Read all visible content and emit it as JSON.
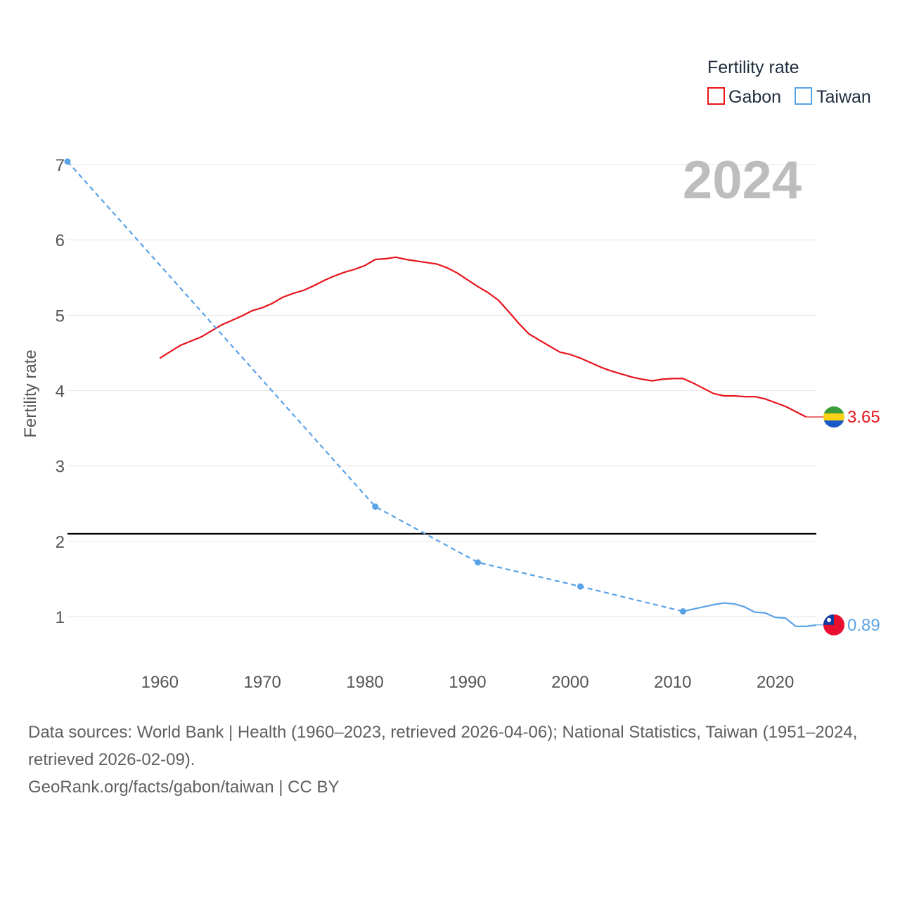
{
  "chart_data": {
    "type": "line",
    "title": "",
    "ylabel": "Fertility rate",
    "xlabel": "",
    "xlim": [
      1951,
      2024
    ],
    "ylim": [
      0,
      7.1
    ],
    "x_ticks": [
      1960,
      1970,
      1980,
      1990,
      2000,
      2010,
      2020
    ],
    "y_ticks": [
      1,
      2,
      3,
      4,
      5,
      6,
      7
    ],
    "current_year": "2024",
    "legend": {
      "title": "Fertility rate",
      "position": "top-right"
    },
    "reference_line": {
      "y": 2.1,
      "color": "#000000"
    },
    "series": [
      {
        "name": "Gabon",
        "color": "#e8141c",
        "end_label": "3.65",
        "end_value": 3.65,
        "points": [
          [
            1960,
            4.43
          ],
          [
            1962,
            4.6
          ],
          [
            1964,
            4.71
          ],
          [
            1966,
            4.87
          ],
          [
            1968,
            4.99
          ],
          [
            1969,
            5.06
          ],
          [
            1970,
            5.1
          ],
          [
            1971,
            5.16
          ],
          [
            1972,
            5.24
          ],
          [
            1973,
            5.29
          ],
          [
            1974,
            5.33
          ],
          [
            1975,
            5.39
          ],
          [
            1976,
            5.46
          ],
          [
            1977,
            5.52
          ],
          [
            1978,
            5.57
          ],
          [
            1979,
            5.61
          ],
          [
            1980,
            5.66
          ],
          [
            1981,
            5.74
          ],
          [
            1982,
            5.75
          ],
          [
            1983,
            5.77
          ],
          [
            1984,
            5.74
          ],
          [
            1985,
            5.72
          ],
          [
            1986,
            5.7
          ],
          [
            1987,
            5.68
          ],
          [
            1988,
            5.63
          ],
          [
            1989,
            5.56
          ],
          [
            1990,
            5.47
          ],
          [
            1991,
            5.38
          ],
          [
            1992,
            5.3
          ],
          [
            1993,
            5.2
          ],
          [
            1994,
            5.05
          ],
          [
            1995,
            4.89
          ],
          [
            1996,
            4.75
          ],
          [
            1997,
            4.67
          ],
          [
            1998,
            4.59
          ],
          [
            1999,
            4.51
          ],
          [
            2000,
            4.48
          ],
          [
            2001,
            4.43
          ],
          [
            2002,
            4.37
          ],
          [
            2003,
            4.31
          ],
          [
            2004,
            4.26
          ],
          [
            2005,
            4.22
          ],
          [
            2006,
            4.18
          ],
          [
            2007,
            4.15
          ],
          [
            2008,
            4.13
          ],
          [
            2009,
            4.15
          ],
          [
            2010,
            4.16
          ],
          [
            2011,
            4.16
          ],
          [
            2012,
            4.1
          ],
          [
            2013,
            4.03
          ],
          [
            2014,
            3.96
          ],
          [
            2015,
            3.93
          ],
          [
            2016,
            3.93
          ],
          [
            2017,
            3.92
          ],
          [
            2018,
            3.92
          ],
          [
            2019,
            3.89
          ],
          [
            2020,
            3.84
          ],
          [
            2021,
            3.79
          ],
          [
            2022,
            3.72
          ],
          [
            2023,
            3.65
          ]
        ],
        "dashed_points": [],
        "markers": []
      },
      {
        "name": "Taiwan",
        "color": "#5aa2e6",
        "end_label": "0.89",
        "end_value": 0.89,
        "points": [
          [
            2011,
            1.07
          ],
          [
            2012,
            1.1
          ],
          [
            2013,
            1.13
          ],
          [
            2014,
            1.16
          ],
          [
            2015,
            1.18
          ],
          [
            2016,
            1.17
          ],
          [
            2017,
            1.13
          ],
          [
            2018,
            1.06
          ],
          [
            2019,
            1.05
          ],
          [
            2020,
            0.99
          ],
          [
            2021,
            0.98
          ],
          [
            2022,
            0.87
          ],
          [
            2023,
            0.87
          ],
          [
            2024,
            0.89
          ]
        ],
        "dashed_points": [
          [
            1951,
            7.04
          ],
          [
            1981,
            2.46
          ],
          [
            1991,
            1.72
          ],
          [
            2001,
            1.4
          ],
          [
            2011,
            1.07
          ]
        ],
        "markers": [
          [
            1951,
            7.04
          ],
          [
            1981,
            2.46
          ],
          [
            1991,
            1.72
          ],
          [
            2001,
            1.4
          ],
          [
            2011,
            1.07
          ]
        ]
      }
    ]
  },
  "footer": {
    "sources_line": "Data sources: World Bank | Health (1960–2023, retrieved 2026-04-06); National Statistics, Taiwan (1951–2024, retrieved 2026-02-09).",
    "credit_line": "GeoRank.org/facts/gabon/taiwan | CC BY"
  },
  "flags": {
    "gabon": {
      "colors": [
        "#3a9b3a",
        "#fcd116",
        "#1858c8"
      ]
    },
    "taiwan": {
      "colors": [
        "#e8102e",
        "#103ea0",
        "#ffffff"
      ]
    }
  }
}
